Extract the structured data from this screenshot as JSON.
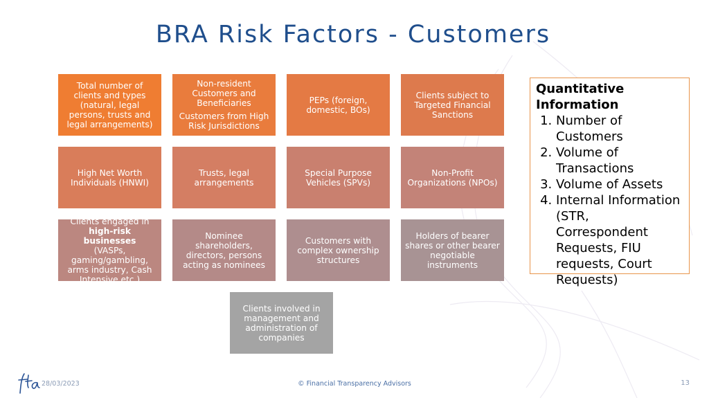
{
  "slide": {
    "title": "BRA Risk Factors - Customers",
    "boxes": [
      {
        "lines": [
          "Total number of clients and types (natural, legal persons, trusts and legal arrangements)"
        ],
        "color": "#ef7d32"
      },
      {
        "lines": [
          "Non-resident Customers and Beneficiaries",
          "Customers from High Risk Jurisdictions"
        ],
        "color": "#e97c3d"
      },
      {
        "lines": [
          "PEPs (foreign, domestic, BOs)"
        ],
        "color": "#e47a44"
      },
      {
        "lines": [
          "Clients subject to Targeted Financial Sanctions"
        ],
        "color": "#dd7a4d"
      },
      {
        "lines": [
          "High Net Worth Individuals (HNWI)"
        ],
        "color": "#d97d5a"
      },
      {
        "lines": [
          "Trusts, legal arrangements"
        ],
        "color": "#d47e63"
      },
      {
        "lines": [
          "Special Purpose Vehicles (SPVs)"
        ],
        "color": "#c9806f"
      },
      {
        "lines": [
          "Non-Profit Organizations (NPOs)"
        ],
        "color": "#c38378"
      },
      {
        "pre": "Clients engaged in",
        "bold": "high-risk businesses",
        "post": "(VASPs, gaming/gambling, arms industry, Cash Intensive etc.)",
        "color": "#bb8780"
      },
      {
        "lines": [
          "Nominee shareholders, directors, persons acting as nominees"
        ],
        "color": "#b48a88"
      },
      {
        "lines": [
          "Customers with complex ownership structures"
        ],
        "color": "#ae8e8f"
      },
      {
        "lines": [
          "Holders of bearer shares or other bearer negotiable instruments"
        ],
        "color": "#a89394"
      },
      {
        "lines": [
          "Clients involved in management and administration of companies"
        ],
        "color": "#a4a4a4"
      }
    ],
    "quantitative": {
      "heading": "Quantitative Information",
      "items": [
        "Number of Customers",
        "Volume of Transactions",
        "Volume of Assets",
        "Internal Information (STR, Correspondent Requests, FIU requests, Court Requests)"
      ]
    }
  },
  "footer": {
    "date": "28/03/2023",
    "copyright": "© Financial Transparency Advisors",
    "page_number": "13",
    "logo_icon": "fta-logo-icon"
  }
}
